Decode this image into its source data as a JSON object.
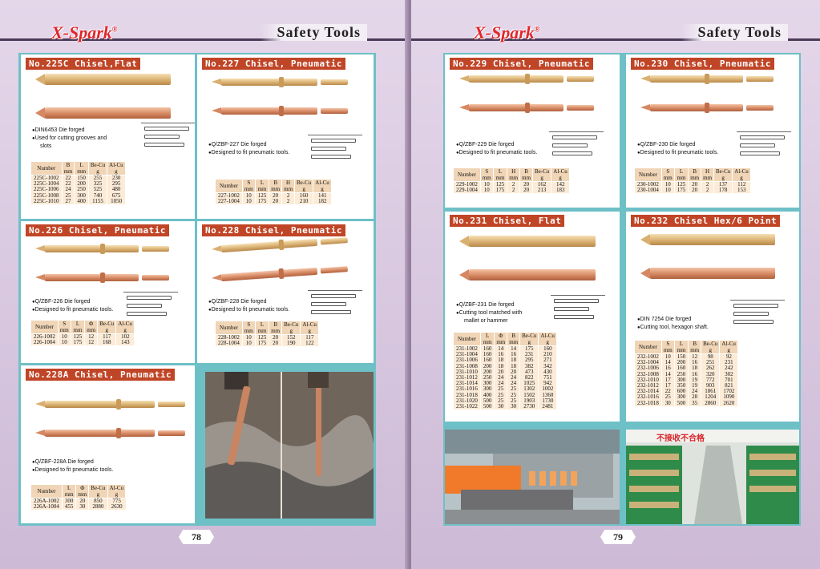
{
  "header": {
    "brand": "X-Spark",
    "reg": "®",
    "section": "Safety Tools"
  },
  "footer": {
    "left_page": "78",
    "right_page": "79"
  },
  "products": {
    "p225c": {
      "title": "No.225C Chisel,Flat",
      "notes": [
        "DIN6453   Die forged",
        "Used for cutting grooves and",
        "slots"
      ],
      "headers": [
        "Number",
        "B\nmm",
        "L\nmm",
        "Be-Cu\ng",
        "Al-Cu\ng"
      ],
      "rows": [
        [
          "225C-1002",
          "22",
          "150",
          "255",
          "230"
        ],
        [
          "225C-1004",
          "22",
          "200",
          "325",
          "295"
        ],
        [
          "225C-1006",
          "24",
          "250",
          "525",
          "480"
        ],
        [
          "225C-1008",
          "25",
          "300",
          "740",
          "675"
        ],
        [
          "225C-1010",
          "27",
          "400",
          "1155",
          "1050"
        ]
      ]
    },
    "p227": {
      "title": "No.227 Chisel, Pneumatic",
      "notes": [
        "Q/ZBF-227   Die forged",
        "Designed to fit pneumatic tools."
      ],
      "headers": [
        "Number",
        "S\nmm",
        "L\nmm",
        "B\nmm",
        "H\nmm",
        "Be-Cu\ng",
        "Al-Cu\ng"
      ],
      "rows": [
        [
          "227-1002",
          "10",
          "125",
          "20",
          "2",
          "160",
          "141"
        ],
        [
          "227-1004",
          "10",
          "175",
          "20",
          "2",
          "210",
          "182"
        ]
      ]
    },
    "p226": {
      "title": "No.226 Chisel, Pneumatic",
      "notes": [
        "Q/ZBF-226   Die forged",
        "Designed to fit pneumatic tools."
      ],
      "headers": [
        "Number",
        "S\nmm",
        "L\nmm",
        "Φ\nmm",
        "Be-Cu\ng",
        "Al-Cu\ng"
      ],
      "rows": [
        [
          "226-1002",
          "10",
          "125",
          "12",
          "117",
          "102"
        ],
        [
          "226-1004",
          "10",
          "175",
          "12",
          "168",
          "143"
        ]
      ]
    },
    "p228": {
      "title": "No.228 Chisel, Pneumatic",
      "notes": [
        "Q/ZBF-228   Die forged",
        "Designed to fit pneumatic tools."
      ],
      "headers": [
        "Number",
        "S\nmm",
        "L\nmm",
        "B\nmm",
        "Be-Cu\ng",
        "Al-Cu\ng"
      ],
      "rows": [
        [
          "228-1002",
          "10",
          "125",
          "20",
          "152",
          "117"
        ],
        [
          "228-1004",
          "10",
          "175",
          "20",
          "190",
          "122"
        ]
      ]
    },
    "p228a": {
      "title": "No.228A Chisel, Pneumatic",
      "notes": [
        "Q/ZBF-228A   Die forged",
        "Designed to fit pneumatic tools."
      ],
      "headers": [
        "Number",
        "L\nmm",
        "Φ\nmm",
        "Be-Cu\ng",
        "Al-Cu\ng"
      ],
      "rows": [
        [
          "226A-1002",
          "300",
          "20",
          "850",
          "775"
        ],
        [
          "226A-1004",
          "455",
          "30",
          "2880",
          "2630"
        ]
      ]
    },
    "p229": {
      "title": "No.229 Chisel, Pneumatic",
      "notes": [
        "Q/ZBF-229   Die forged",
        "Designed to fit pneumatic tools."
      ],
      "headers": [
        "Number",
        "S\nmm",
        "L\nmm",
        "H\nmm",
        "B\nmm",
        "Be-Cu\ng",
        "Al-Cu\ng"
      ],
      "rows": [
        [
          "229-1002",
          "10",
          "125",
          "2",
          "20",
          "162",
          "142"
        ],
        [
          "229-1004",
          "10",
          "175",
          "2",
          "20",
          "213",
          "183"
        ]
      ]
    },
    "p230": {
      "title": "No.230 Chisel, Pneumatic",
      "notes": [
        "Q/ZBF-230   Die forged",
        "Designed to fit pneumatic tools."
      ],
      "headers": [
        "Number",
        "S\nmm",
        "L\nmm",
        "B\nmm",
        "H\nmm",
        "Be-Cu\ng",
        "Al-Cu\ng"
      ],
      "rows": [
        [
          "230-1002",
          "10",
          "125",
          "20",
          "2",
          "137",
          "112"
        ],
        [
          "230-1004",
          "10",
          "175",
          "20",
          "2",
          "178",
          "153"
        ]
      ]
    },
    "p231": {
      "title": "No.231 Chisel, Flat",
      "notes": [
        "Q/ZBF-231   Die forged",
        "Cutting tool matched with",
        "mallet or hammer"
      ],
      "headers": [
        "Number",
        "L\nmm",
        "Φ\nmm",
        "B\nmm",
        "Be-Cu\ng",
        "Al-Cu\ng"
      ],
      "rows": [
        [
          "231-1002",
          "160",
          "14",
          "14",
          "175",
          "160"
        ],
        [
          "231-1004",
          "160",
          "16",
          "16",
          "231",
          "210"
        ],
        [
          "231-1006",
          "160",
          "18",
          "18",
          "295",
          "271"
        ],
        [
          "231-1008",
          "200",
          "18",
          "18",
          "382",
          "342"
        ],
        [
          "231-1010",
          "200",
          "20",
          "20",
          "473",
          "430"
        ],
        [
          "231-1012",
          "250",
          "24",
          "24",
          "822",
          "751"
        ],
        [
          "231-1014",
          "300",
          "24",
          "24",
          "1025",
          "942"
        ],
        [
          "231-1016",
          "300",
          "25",
          "25",
          "1302",
          "1002"
        ],
        [
          "231-1018",
          "400",
          "25",
          "25",
          "1502",
          "1360"
        ],
        [
          "231-1020",
          "500",
          "25",
          "25",
          "1903",
          "1730"
        ],
        [
          "231-1022",
          "500",
          "30",
          "30",
          "2730",
          "2481"
        ]
      ]
    },
    "p232": {
      "title": "No.232 Chisel Hex/6 Point",
      "notes": [
        "DIN 7254   Die forged",
        "Cutting tool, hexagon shaft."
      ],
      "headers": [
        "Number",
        "S\nmm",
        "L\nmm",
        "B\nmm",
        "Be-Cu\ng",
        "Al-Cu\ng"
      ],
      "rows": [
        [
          "232-1002",
          "10",
          "150",
          "12",
          "98",
          "92"
        ],
        [
          "232-1004",
          "14",
          "200",
          "16",
          "251",
          "231"
        ],
        [
          "232-1006",
          "16",
          "160",
          "18",
          "262",
          "242"
        ],
        [
          "232-1008",
          "14",
          "250",
          "16",
          "320",
          "302"
        ],
        [
          "232-1010",
          "17",
          "300",
          "19",
          "772",
          "701"
        ],
        [
          "232-1012",
          "17",
          "350",
          "19",
          "903",
          "821"
        ],
        [
          "232-1014",
          "22",
          "600",
          "24",
          "1861",
          "1702"
        ],
        [
          "232-1016",
          "25",
          "300",
          "28",
          "1204",
          "1090"
        ],
        [
          "232-1018",
          "30",
          "500",
          "35",
          "2860",
          "2620"
        ]
      ]
    }
  },
  "photo_sign": "不接收不合格"
}
